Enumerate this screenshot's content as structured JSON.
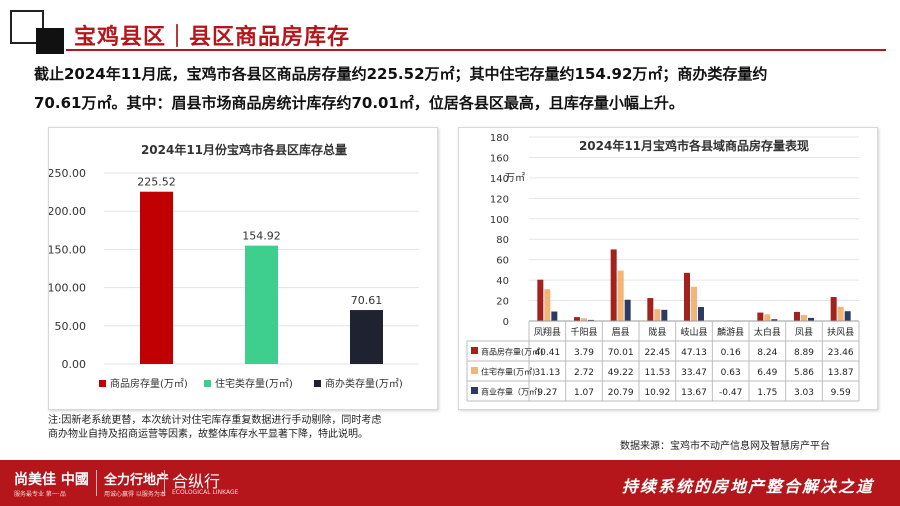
{
  "header": {
    "title": "宝鸡县区｜县区商品房库存"
  },
  "summary": {
    "line1": "截止2024年11月底，宝鸡市各县区商品房存量约225.52万㎡；其中住宅存量约154.92万㎡；商办类存量约",
    "line2": "70.61万㎡。其中：眉县市场商品房统计库存约70.01㎡，位居各县区最高，且库存量小幅上升。"
  },
  "chart_data": [
    {
      "type": "bar",
      "title": "2024年11月份宝鸡市各县区库存总量",
      "categories": [
        "商品房存量(万㎡)",
        "住宅类存量(万㎡)",
        "商办类存量(万㎡)"
      ],
      "values": [
        225.52,
        154.92,
        70.61
      ],
      "value_labels": [
        "225.52",
        "154.92",
        "70.61"
      ],
      "colors": [
        "#c00000",
        "#3ecf8e",
        "#1f2230"
      ],
      "ylim": [
        0,
        250
      ],
      "yticks": [
        "0.00",
        "50.00",
        "100.00",
        "150.00",
        "200.00",
        "250.00"
      ],
      "grid": true,
      "legend": "bottom"
    },
    {
      "type": "bar",
      "title": "2024年11月宝鸡市各县域商品房存量表现",
      "ylabel": "万㎡",
      "categories": [
        "凤翔县",
        "千阳县",
        "眉县",
        "陇县",
        "岐山县",
        "麟游县",
        "太白县",
        "凤县",
        "扶风县"
      ],
      "series": [
        {
          "name": "商品房存量(万㎡)",
          "color": "#a3221e",
          "values": [
            40.41,
            3.79,
            70.01,
            22.45,
            47.13,
            0.16,
            8.24,
            8.89,
            23.46
          ],
          "labels": [
            "40.41",
            "3.79",
            "70.01",
            "22.45",
            "47.13",
            "0.16",
            "8.24",
            "8.89",
            "23.46"
          ]
        },
        {
          "name": "住宅存量(万㎡)",
          "color": "#f2b477",
          "values": [
            31.13,
            2.72,
            49.22,
            11.53,
            33.47,
            0.63,
            6.49,
            5.86,
            13.87
          ],
          "labels": [
            "31.13",
            "2.72",
            "49.22",
            "11.53",
            "33.47",
            "0.63",
            "6.49",
            "5.86",
            "13.87"
          ]
        },
        {
          "name": "商业存量（万㎡)",
          "color": "#2d3a66",
          "values": [
            9.27,
            1.07,
            20.79,
            10.92,
            13.67,
            -0.47,
            1.75,
            3.03,
            9.59
          ],
          "labels": [
            "9.27",
            "1.07",
            "20.79",
            "10.92",
            "13.67",
            "-0.47",
            "1.75",
            "3.03",
            "9.59"
          ]
        }
      ],
      "ylim": [
        0,
        180
      ],
      "yticks": [
        "0",
        "20",
        "40",
        "60",
        "80",
        "100",
        "120",
        "140",
        "160",
        "180"
      ],
      "grid": true,
      "legend": "data-table"
    }
  ],
  "note": {
    "line1": "注:因新老系统更替，本次统计对住宅库存重复数据进行手动剔除，同时考虑",
    "line2": "商办物业自持及招商运营等因素，故整体库存水平显著下降，特此说明。"
  },
  "source": "数据来源：宝鸡市不动产信息网及智慧房产平台",
  "footer": {
    "brand1": "尚美佳 中國",
    "brand1_sub": "服务最专业 第一·品",
    "brand2": "全力行地产",
    "brand2_sub": "用诚心赢得 以服务为本",
    "brand3": "合纵行",
    "brand3_sub": "ECOLOGICAL LINKAGE",
    "slogan": "持续系统的房地产整合解决之道"
  }
}
